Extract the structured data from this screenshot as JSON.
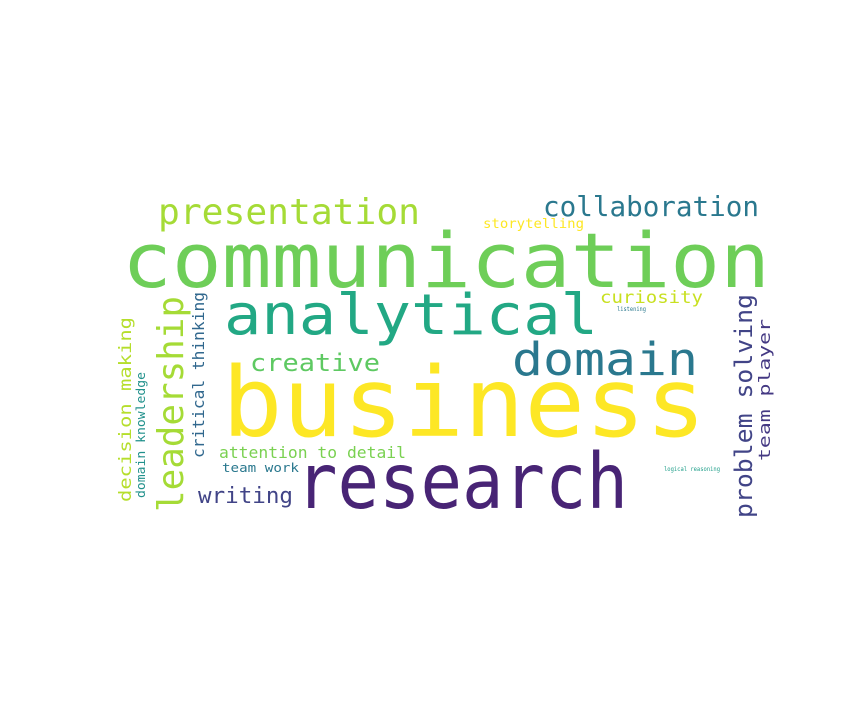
{
  "words": [
    {
      "text": "communication",
      "color": "#6ece58"
    },
    {
      "text": "business",
      "color": "#fde725"
    },
    {
      "text": "research",
      "color": "#482475"
    },
    {
      "text": "analytical",
      "color": "#22a884"
    },
    {
      "text": "domain",
      "color": "#2a788e"
    },
    {
      "text": "presentation",
      "color": "#a5db36"
    },
    {
      "text": "collaboration",
      "color": "#2a788e"
    },
    {
      "text": "leadership",
      "color": "#a5db36"
    },
    {
      "text": "problem solving",
      "color": "#414487"
    },
    {
      "text": "creative",
      "color": "#5ec962"
    },
    {
      "text": "writing",
      "color": "#414487"
    },
    {
      "text": "decision making",
      "color": "#b5de2b"
    },
    {
      "text": "critical thinking",
      "color": "#31688e"
    },
    {
      "text": "team player",
      "color": "#443983"
    },
    {
      "text": "curiosity",
      "color": "#c8e020"
    },
    {
      "text": "attention to detail",
      "color": "#7ad151"
    },
    {
      "text": "domain knowledge",
      "color": "#21918c"
    },
    {
      "text": "storytelling",
      "color": "#fde725"
    },
    {
      "text": "team work",
      "color": "#2a788e"
    },
    {
      "text": "listening",
      "color": "#2a788e"
    },
    {
      "text": "logical reasoning",
      "color": "#1f9e89"
    }
  ]
}
